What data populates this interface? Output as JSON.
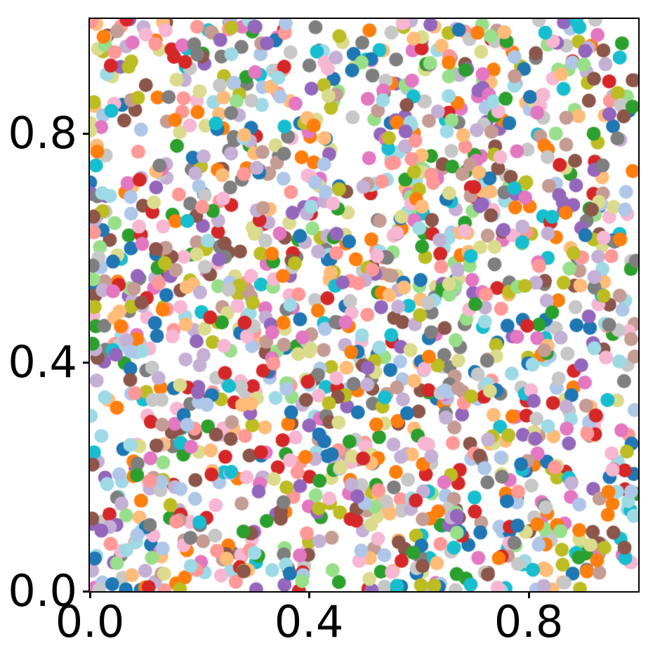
{
  "figure": {
    "background_color": "#ffffff",
    "axis_color": "#000000",
    "title": ""
  },
  "chart_data": {
    "type": "scatter",
    "title": "",
    "xlabel": "",
    "ylabel": "",
    "xlim": [
      0.0,
      1.0
    ],
    "ylim": [
      0.0,
      1.0
    ],
    "grid": false,
    "legend": "none",
    "xticks": {
      "values": [
        0.0,
        0.4,
        0.8
      ],
      "labels": [
        "0.0",
        "0.4",
        "0.8"
      ]
    },
    "yticks": {
      "values": [
        0.0,
        0.4,
        0.8
      ],
      "labels": [
        "0.0",
        "0.4",
        "0.8"
      ]
    },
    "points": {
      "distribution": "uniform-random",
      "n_points": 1800,
      "seed": 7,
      "marker_radius_px": 10,
      "marker_opacity": 1.0
    },
    "palette_name": "tab20",
    "palette": [
      "#1f77b4",
      "#aec7e8",
      "#ff7f0e",
      "#ffbb78",
      "#2ca02c",
      "#98df8a",
      "#d62728",
      "#ff9896",
      "#9467bd",
      "#c5b0d5",
      "#8c564b",
      "#c49c94",
      "#e377c2",
      "#f7b6d2",
      "#7f7f7f",
      "#c7c7c7",
      "#bcbd22",
      "#dbdb8d",
      "#17becf",
      "#9edae5"
    ]
  }
}
